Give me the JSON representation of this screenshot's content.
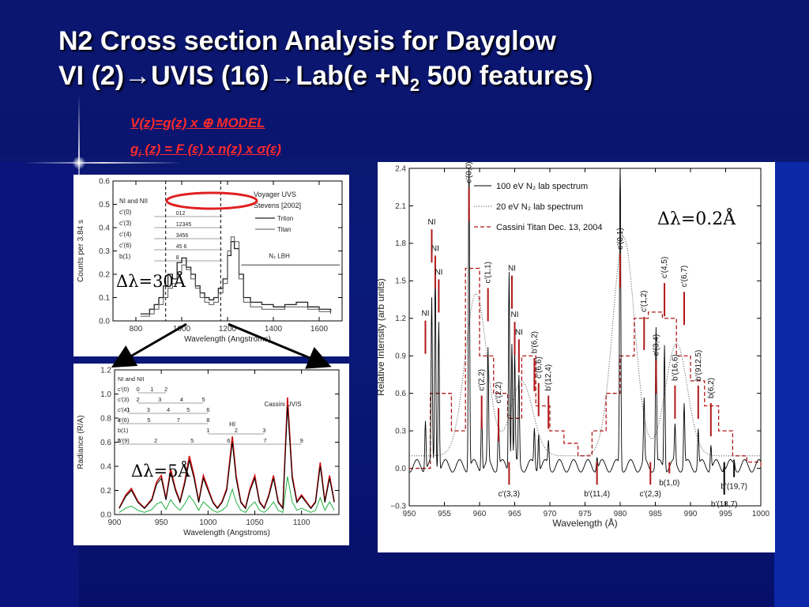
{
  "slide": {
    "title_line1": "N2 Cross section Analysis for Dayglow",
    "title_line2_a": "VI (2)→UVIS (16)→Lab(e +N",
    "title_line2_sub": "2",
    "title_line2_b": " 500 features)",
    "formula1": "V(z)=g(z)  x  ⊕  MODEL",
    "formula2_a": "g",
    "formula2_sub": "i",
    "formula2_b": " (z) = F (ε)  x n(z) x σ(ε)"
  },
  "annotations": {
    "res_voyager": "Δλ=30Å",
    "res_cassini": "Δλ=5Å",
    "res_lab": "Δλ=0.2Å"
  },
  "colors": {
    "background": "#0a1a7a",
    "title": "#ffffff",
    "formula": "#ff2a2a",
    "highlight_ellipse": "#e02020",
    "lab_red": "#b01818",
    "cassini_red": "#d01010",
    "cassini_green": "#20b040",
    "cassini_blue": "#1030d0"
  },
  "chart_data": [
    {
      "type": "line",
      "xlabel": "Wavelength (Angstroms)",
      "ylabel": "Counts per 3.84 s",
      "xlim": [
        700,
        1700
      ],
      "ylim": [
        0.0,
        0.6
      ],
      "x_ticks": [
        "800",
        "1000",
        "1200",
        "1400",
        "1600"
      ],
      "y_ticks": [
        "0.0",
        "0.1",
        "0.2",
        "0.3",
        "0.4",
        "0.5",
        "0.6"
      ],
      "legend_title": "Voyager UVS",
      "legend_subtitle": "Stevens [2002]",
      "series": [
        {
          "name": "Triton",
          "x": [
            820,
            860,
            880,
            900,
            920,
            940,
            960,
            980,
            1000,
            1020,
            1040,
            1060,
            1080,
            1100,
            1120,
            1140,
            1160,
            1180,
            1200,
            1215,
            1230,
            1250,
            1270,
            1300,
            1350,
            1400,
            1450,
            1500,
            1550,
            1600,
            1650
          ],
          "y": [
            0.03,
            0.05,
            0.07,
            0.1,
            0.15,
            0.2,
            0.18,
            0.25,
            0.27,
            0.23,
            0.2,
            0.15,
            0.12,
            0.1,
            0.09,
            0.1,
            0.14,
            0.18,
            0.28,
            0.34,
            0.31,
            0.2,
            0.1,
            0.08,
            0.07,
            0.06,
            0.07,
            0.08,
            0.06,
            0.05,
            0.04
          ]
        },
        {
          "name": "Titan",
          "x": [
            820,
            860,
            880,
            900,
            920,
            940,
            960,
            980,
            1000,
            1020,
            1040,
            1060,
            1080,
            1100,
            1120,
            1140,
            1160,
            1180,
            1200,
            1215,
            1230,
            1250,
            1270,
            1300,
            1350,
            1400,
            1450,
            1500,
            1550,
            1600,
            1650
          ],
          "y": [
            0.02,
            0.03,
            0.05,
            0.07,
            0.1,
            0.14,
            0.16,
            0.2,
            0.24,
            0.22,
            0.18,
            0.14,
            0.1,
            0.08,
            0.07,
            0.08,
            0.12,
            0.16,
            0.3,
            0.36,
            0.34,
            0.18,
            0.08,
            0.06,
            0.05,
            0.05,
            0.06,
            0.06,
            0.05,
            0.04,
            0.03
          ]
        }
      ],
      "band_labels": [
        "NI and NII",
        "c'(0)",
        "c'(3)",
        "c'(4)",
        "c'(6)",
        "b(1)"
      ],
      "band_numbers": [
        "012",
        "12345",
        "3456",
        "45 6",
        "8"
      ],
      "region_label": "N₂ LBH"
    },
    {
      "type": "line",
      "title": "Cassini UVIS",
      "xlabel": "Wavelength (Angstroms)",
      "ylabel": "Radiance (R/A)",
      "xlim": [
        900,
        1140
      ],
      "ylim": [
        0.0,
        1.2
      ],
      "x_ticks": [
        "900",
        "950",
        "1000",
        "1050",
        "1100"
      ],
      "y_ticks": [
        "0.0",
        "0.2",
        "0.4",
        "0.6",
        "0.8",
        "1.0",
        "1.2"
      ],
      "band_labels": [
        "NI and NII",
        "c'(0)",
        "c'(3)",
        "c'(4)",
        "c'(6)",
        "b(1)",
        "b'(9)"
      ],
      "band_numbers": {
        "c0": [
          "0",
          "1",
          "2"
        ],
        "c3": [
          "2",
          "3",
          "4",
          "5"
        ],
        "c4": [
          "1",
          "3",
          "4",
          "5",
          "6"
        ],
        "c6": [
          "4",
          "5",
          "7",
          "8"
        ],
        "b1": [
          "1",
          "2",
          "3"
        ],
        "b9": [
          "1",
          "2",
          "5",
          "6",
          "7",
          "9"
        ]
      },
      "hi_label": "HI",
      "series": [
        {
          "name": "observed",
          "x": [
            905,
            912,
            918,
            925,
            932,
            940,
            945,
            950,
            955,
            960,
            965,
            970,
            975,
            980,
            985,
            990,
            995,
            1000,
            1005,
            1010,
            1015,
            1020,
            1026,
            1030,
            1035,
            1040,
            1045,
            1050,
            1055,
            1060,
            1065,
            1070,
            1075,
            1080,
            1085,
            1090,
            1095,
            1100,
            1105,
            1110,
            1115,
            1120,
            1125,
            1130,
            1135
          ],
          "y": [
            0.05,
            0.15,
            0.2,
            0.1,
            0.05,
            0.12,
            0.25,
            0.3,
            0.12,
            0.35,
            0.2,
            0.1,
            0.25,
            0.45,
            0.3,
            0.1,
            0.3,
            0.2,
            0.1,
            0.05,
            0.1,
            0.2,
            0.6,
            0.3,
            0.1,
            0.05,
            0.2,
            0.3,
            0.1,
            0.05,
            0.15,
            0.3,
            0.1,
            0.05,
            0.9,
            0.3,
            0.1,
            0.15,
            0.1,
            0.05,
            0.1,
            0.4,
            0.1,
            0.3,
            0.1
          ]
        }
      ]
    },
    {
      "type": "line",
      "xlabel": "Wavelength (Å)",
      "ylabel": "Relative Intensity (arb units)",
      "xlim": [
        950,
        1000
      ],
      "ylim": [
        -0.3,
        2.4
      ],
      "x_ticks": [
        "950",
        "955",
        "960",
        "965",
        "970",
        "975",
        "980",
        "985",
        "990",
        "995",
        "1000"
      ],
      "y_ticks": [
        "−0.3",
        "0.0",
        "0.3",
        "0.6",
        "0.9",
        "1.2",
        "1.5",
        "1.8",
        "2.1",
        "2.4"
      ],
      "legend": [
        "100 eV N₂ lab spectrum",
        "20 eV N₂ lab spectrum",
        "Cassini Titan Dec. 13, 2004"
      ],
      "labels_above": [
        {
          "t": "c'(0,0)",
          "x": 958.5
        },
        {
          "t": "NI",
          "x": 953.2
        },
        {
          "t": "NI",
          "x": 953.7
        },
        {
          "t": "NI",
          "x": 954.2
        },
        {
          "t": "NI",
          "x": 952.3
        },
        {
          "t": "c'(1,1)",
          "x": 961.2
        },
        {
          "t": "NI",
          "x": 964.6
        },
        {
          "t": "NI",
          "x": 965.0
        },
        {
          "t": "NI",
          "x": 965.6
        },
        {
          "t": "c'(2,2)",
          "x": 960.3
        },
        {
          "t": "c'(2,2)",
          "x": 962.7
        },
        {
          "t": "b'(6,2)",
          "x": 967.8
        },
        {
          "t": "c'(6,6)",
          "x": 968.4
        },
        {
          "t": "b'(12,4)",
          "x": 969.8
        },
        {
          "t": "c'(0,1)",
          "x": 980.0
        },
        {
          "t": "c'(3,4)",
          "x": 985.1
        },
        {
          "t": "c'(4,5)",
          "x": 986.3
        },
        {
          "t": "c'(6,7)",
          "x": 989.1
        },
        {
          "t": "c'(1,2)",
          "x": 983.4
        },
        {
          "t": "b'(16,6)",
          "x": 987.8
        },
        {
          "t": "b'(912,5)",
          "x": 991.1
        },
        {
          "t": "b(6,2)",
          "x": 992.9
        }
      ],
      "labels_below": [
        {
          "t": "c'(3,3)",
          "x": 964.2
        },
        {
          "t": "b'(11,4)",
          "x": 976.7
        },
        {
          "t": "c'(2,3)",
          "x": 984.3
        },
        {
          "t": "b(1,0)",
          "x": 987.0
        },
        {
          "t": "b'(18,7)",
          "x": 994.8
        },
        {
          "t": "b'(19,7)",
          "x": 996.2
        }
      ]
    }
  ]
}
